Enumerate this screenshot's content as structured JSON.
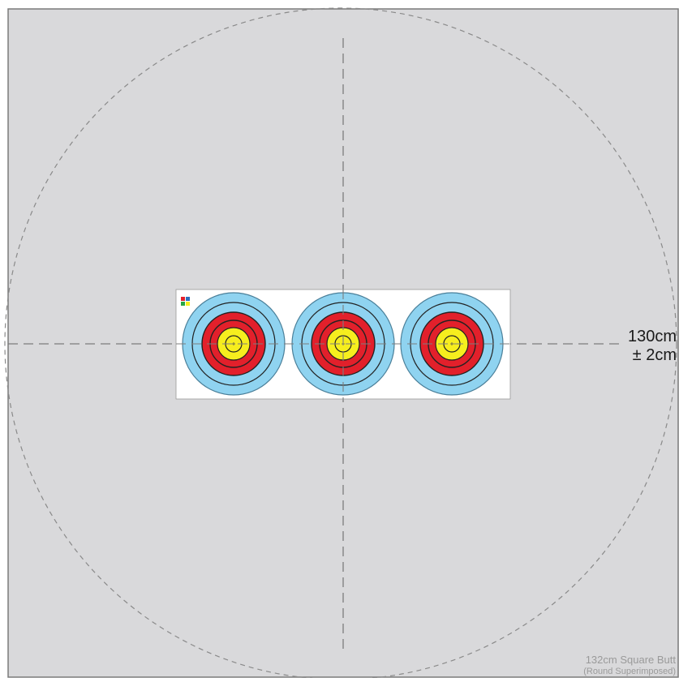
{
  "diagram": {
    "dimension_label": "130cm",
    "tolerance_label": "± 2cm",
    "caption_title": "132cm Square  Butt",
    "caption_subtitle": "(Round Superimposed)"
  },
  "colors": {
    "butt_fill": "#d9d9db",
    "butt_border": "#7a7a7a",
    "guide_dash": "#7d7d7d",
    "face_background": "#ffffff",
    "ring_blue": "#8fd3f0",
    "ring_red": "#e2202b",
    "ring_yellow": "#f6ee1e",
    "ring_line": "#222222"
  },
  "targets": {
    "count": 3,
    "zones": [
      "blue",
      "red",
      "yellow"
    ],
    "logo": "World Archery logo"
  }
}
